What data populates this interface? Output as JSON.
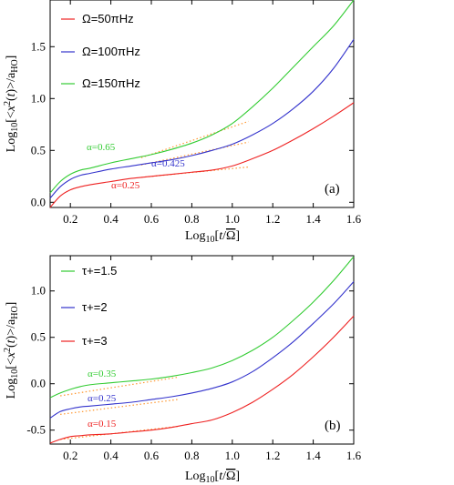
{
  "chart_data": [
    {
      "type": "line",
      "panel_tag": "(a)",
      "xlabel": "Log10[t/Ω̄]",
      "ylabel": "Log10[<x²(t)>/aHO]",
      "xlim": [
        0.1,
        1.6
      ],
      "ylim": [
        -0.05,
        1.95
      ],
      "x_ticks": [
        0.2,
        0.4,
        0.6,
        0.8,
        1.0,
        1.2,
        1.4,
        1.6
      ],
      "x_tick_labels": [
        "0.2",
        "0.4",
        "0.6",
        "0.8",
        "1.0",
        "1.2",
        "1.4",
        "1.6"
      ],
      "y_ticks": [
        0.0,
        0.5,
        1.0,
        1.5
      ],
      "y_tick_labels": [
        "0.0",
        "0.5",
        "1.0",
        "1.5"
      ],
      "legend_placement": "top-left",
      "series": [
        {
          "name": "Ω=50πHz",
          "color": "#ee2222",
          "x": [
            0.1,
            0.15,
            0.2,
            0.25,
            0.3,
            0.4,
            0.5,
            0.6,
            0.7,
            0.8,
            0.9,
            1.0,
            1.1,
            1.2,
            1.3,
            1.4,
            1.5,
            1.6
          ],
          "y": [
            -0.05,
            0.06,
            0.12,
            0.15,
            0.17,
            0.2,
            0.23,
            0.25,
            0.27,
            0.29,
            0.31,
            0.35,
            0.42,
            0.5,
            0.6,
            0.71,
            0.83,
            0.96
          ]
        },
        {
          "name": "Ω=100πHz",
          "color": "#3333cc",
          "x": [
            0.1,
            0.15,
            0.2,
            0.25,
            0.3,
            0.4,
            0.5,
            0.6,
            0.7,
            0.8,
            0.9,
            1.0,
            1.1,
            1.2,
            1.3,
            1.4,
            1.5,
            1.6
          ],
          "y": [
            0.04,
            0.15,
            0.22,
            0.26,
            0.28,
            0.32,
            0.35,
            0.38,
            0.41,
            0.45,
            0.5,
            0.56,
            0.65,
            0.76,
            0.9,
            1.07,
            1.29,
            1.57
          ]
        },
        {
          "name": "Ω=150πHz",
          "color": "#33cc33",
          "x": [
            0.1,
            0.15,
            0.2,
            0.25,
            0.3,
            0.4,
            0.5,
            0.6,
            0.7,
            0.8,
            0.9,
            1.0,
            1.1,
            1.2,
            1.3,
            1.4,
            1.5,
            1.6
          ],
          "y": [
            0.09,
            0.2,
            0.27,
            0.31,
            0.33,
            0.38,
            0.42,
            0.46,
            0.51,
            0.57,
            0.65,
            0.76,
            0.92,
            1.1,
            1.3,
            1.5,
            1.7,
            1.95
          ]
        }
      ],
      "fit_lines": [
        {
          "label": "α=0.65",
          "color": "#33cc33",
          "x": [
            0.55,
            1.08
          ],
          "y": [
            0.43,
            0.78
          ]
        },
        {
          "label": "α=0.425",
          "color": "#3333cc",
          "x": [
            0.55,
            1.08
          ],
          "y": [
            0.36,
            0.58
          ]
        },
        {
          "label": "α=0.25",
          "color": "#ee2222",
          "x": [
            0.55,
            1.08
          ],
          "y": [
            0.24,
            0.34
          ]
        }
      ]
    },
    {
      "type": "line",
      "panel_tag": "(b)",
      "xlabel": "Log10[t/Ω̄]",
      "ylabel": "Log10[<x²(t)>/aHO]",
      "xlim": [
        0.1,
        1.6
      ],
      "ylim": [
        -0.65,
        1.38
      ],
      "x_ticks": [
        0.2,
        0.4,
        0.6,
        0.8,
        1.0,
        1.2,
        1.4,
        1.6
      ],
      "x_tick_labels": [
        "0.2",
        "0.4",
        "0.6",
        "0.8",
        "1.0",
        "1.2",
        "1.4",
        "1.6"
      ],
      "y_ticks": [
        -0.5,
        0.0,
        0.5,
        1.0
      ],
      "y_tick_labels": [
        "-0.5",
        "0.0",
        "0.5",
        "1.0"
      ],
      "legend_placement": "top-left",
      "series": [
        {
          "name": "τ+=1.5",
          "color": "#33cc33",
          "x": [
            0.1,
            0.15,
            0.2,
            0.25,
            0.3,
            0.4,
            0.5,
            0.6,
            0.7,
            0.8,
            0.9,
            1.0,
            1.1,
            1.2,
            1.3,
            1.4,
            1.5,
            1.6
          ],
          "y": [
            -0.15,
            -0.1,
            -0.06,
            -0.03,
            -0.01,
            0.01,
            0.03,
            0.05,
            0.08,
            0.12,
            0.17,
            0.25,
            0.36,
            0.5,
            0.68,
            0.88,
            1.11,
            1.37
          ]
        },
        {
          "name": "τ+=2",
          "color": "#3333cc",
          "x": [
            0.1,
            0.15,
            0.2,
            0.25,
            0.3,
            0.4,
            0.5,
            0.6,
            0.7,
            0.8,
            0.9,
            1.0,
            1.1,
            1.2,
            1.3,
            1.4,
            1.5,
            1.6
          ],
          "y": [
            -0.37,
            -0.3,
            -0.27,
            -0.25,
            -0.24,
            -0.22,
            -0.2,
            -0.17,
            -0.14,
            -0.1,
            -0.05,
            0.02,
            0.13,
            0.28,
            0.45,
            0.65,
            0.86,
            1.1
          ]
        },
        {
          "name": "τ+=3",
          "color": "#ee2222",
          "x": [
            0.1,
            0.15,
            0.2,
            0.25,
            0.3,
            0.4,
            0.5,
            0.6,
            0.7,
            0.8,
            0.9,
            1.0,
            1.1,
            1.2,
            1.3,
            1.4,
            1.5,
            1.6
          ],
          "y": [
            -0.64,
            -0.6,
            -0.57,
            -0.56,
            -0.55,
            -0.54,
            -0.52,
            -0.5,
            -0.47,
            -0.43,
            -0.39,
            -0.31,
            -0.2,
            -0.06,
            0.1,
            0.29,
            0.5,
            0.73
          ]
        }
      ],
      "fit_lines": [
        {
          "label": "α=0.35",
          "color": "#33cc33",
          "x": [
            0.15,
            0.73
          ],
          "y": [
            -0.13,
            0.07
          ]
        },
        {
          "label": "α=0.25",
          "color": "#3333cc",
          "x": [
            0.15,
            0.73
          ],
          "y": [
            -0.33,
            -0.17
          ]
        },
        {
          "label": "α=0.15",
          "color": "#ee2222",
          "x": [
            0.15,
            0.73
          ],
          "y": [
            -0.6,
            -0.46
          ]
        }
      ]
    }
  ]
}
